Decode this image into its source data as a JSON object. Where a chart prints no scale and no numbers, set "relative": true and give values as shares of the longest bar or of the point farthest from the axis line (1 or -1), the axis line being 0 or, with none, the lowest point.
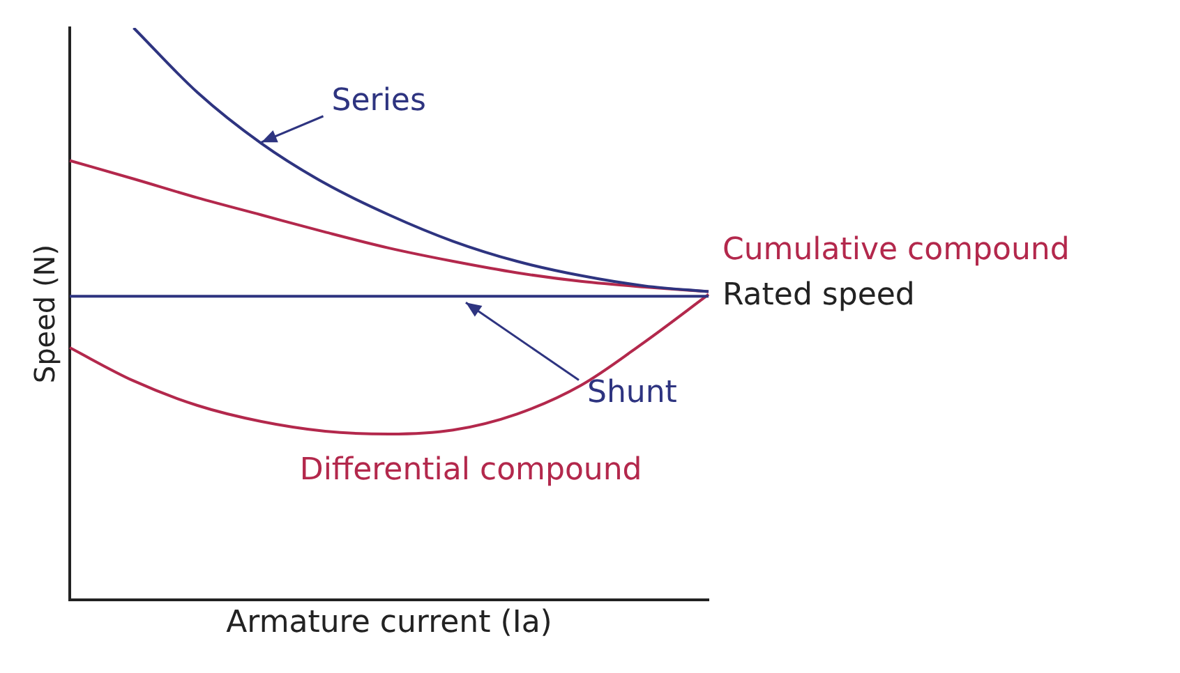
{
  "chart_data": {
    "type": "line",
    "relative": true,
    "xlabel": "Armature current (Ia)",
    "ylabel": "Speed (N)",
    "categories": [
      null,
      null,
      null,
      null,
      null,
      null,
      null,
      null,
      null,
      null,
      null
    ],
    "series": [
      {
        "name": "Series",
        "color": "#2e3480",
        "values": [
          null,
          1.0,
          0.887,
          0.798,
          0.728,
          0.673,
          0.627,
          0.592,
          0.567,
          0.549,
          0.539
        ]
      },
      {
        "name": "Cumulative compound",
        "color": "#b3284c",
        "values": [
          0.768,
          0.736,
          0.703,
          0.673,
          0.643,
          0.615,
          0.592,
          0.572,
          0.557,
          0.547,
          0.539
        ]
      },
      {
        "name": "Shunt",
        "color": "#2e3480",
        "values": [
          0.531,
          0.531,
          0.531,
          0.531,
          0.531,
          0.531,
          0.531,
          0.531,
          0.531,
          0.531,
          0.531
        ]
      },
      {
        "name": "Differential compound",
        "color": "#b3284c",
        "values": [
          0.441,
          0.383,
          0.34,
          0.312,
          0.295,
          0.29,
          0.297,
          0.325,
          0.375,
          0.451,
          0.534
        ]
      }
    ],
    "annotations": [
      "Rated speed"
    ],
    "legend": false,
    "grid": false,
    "marker": "none",
    "line_style": "solid"
  }
}
